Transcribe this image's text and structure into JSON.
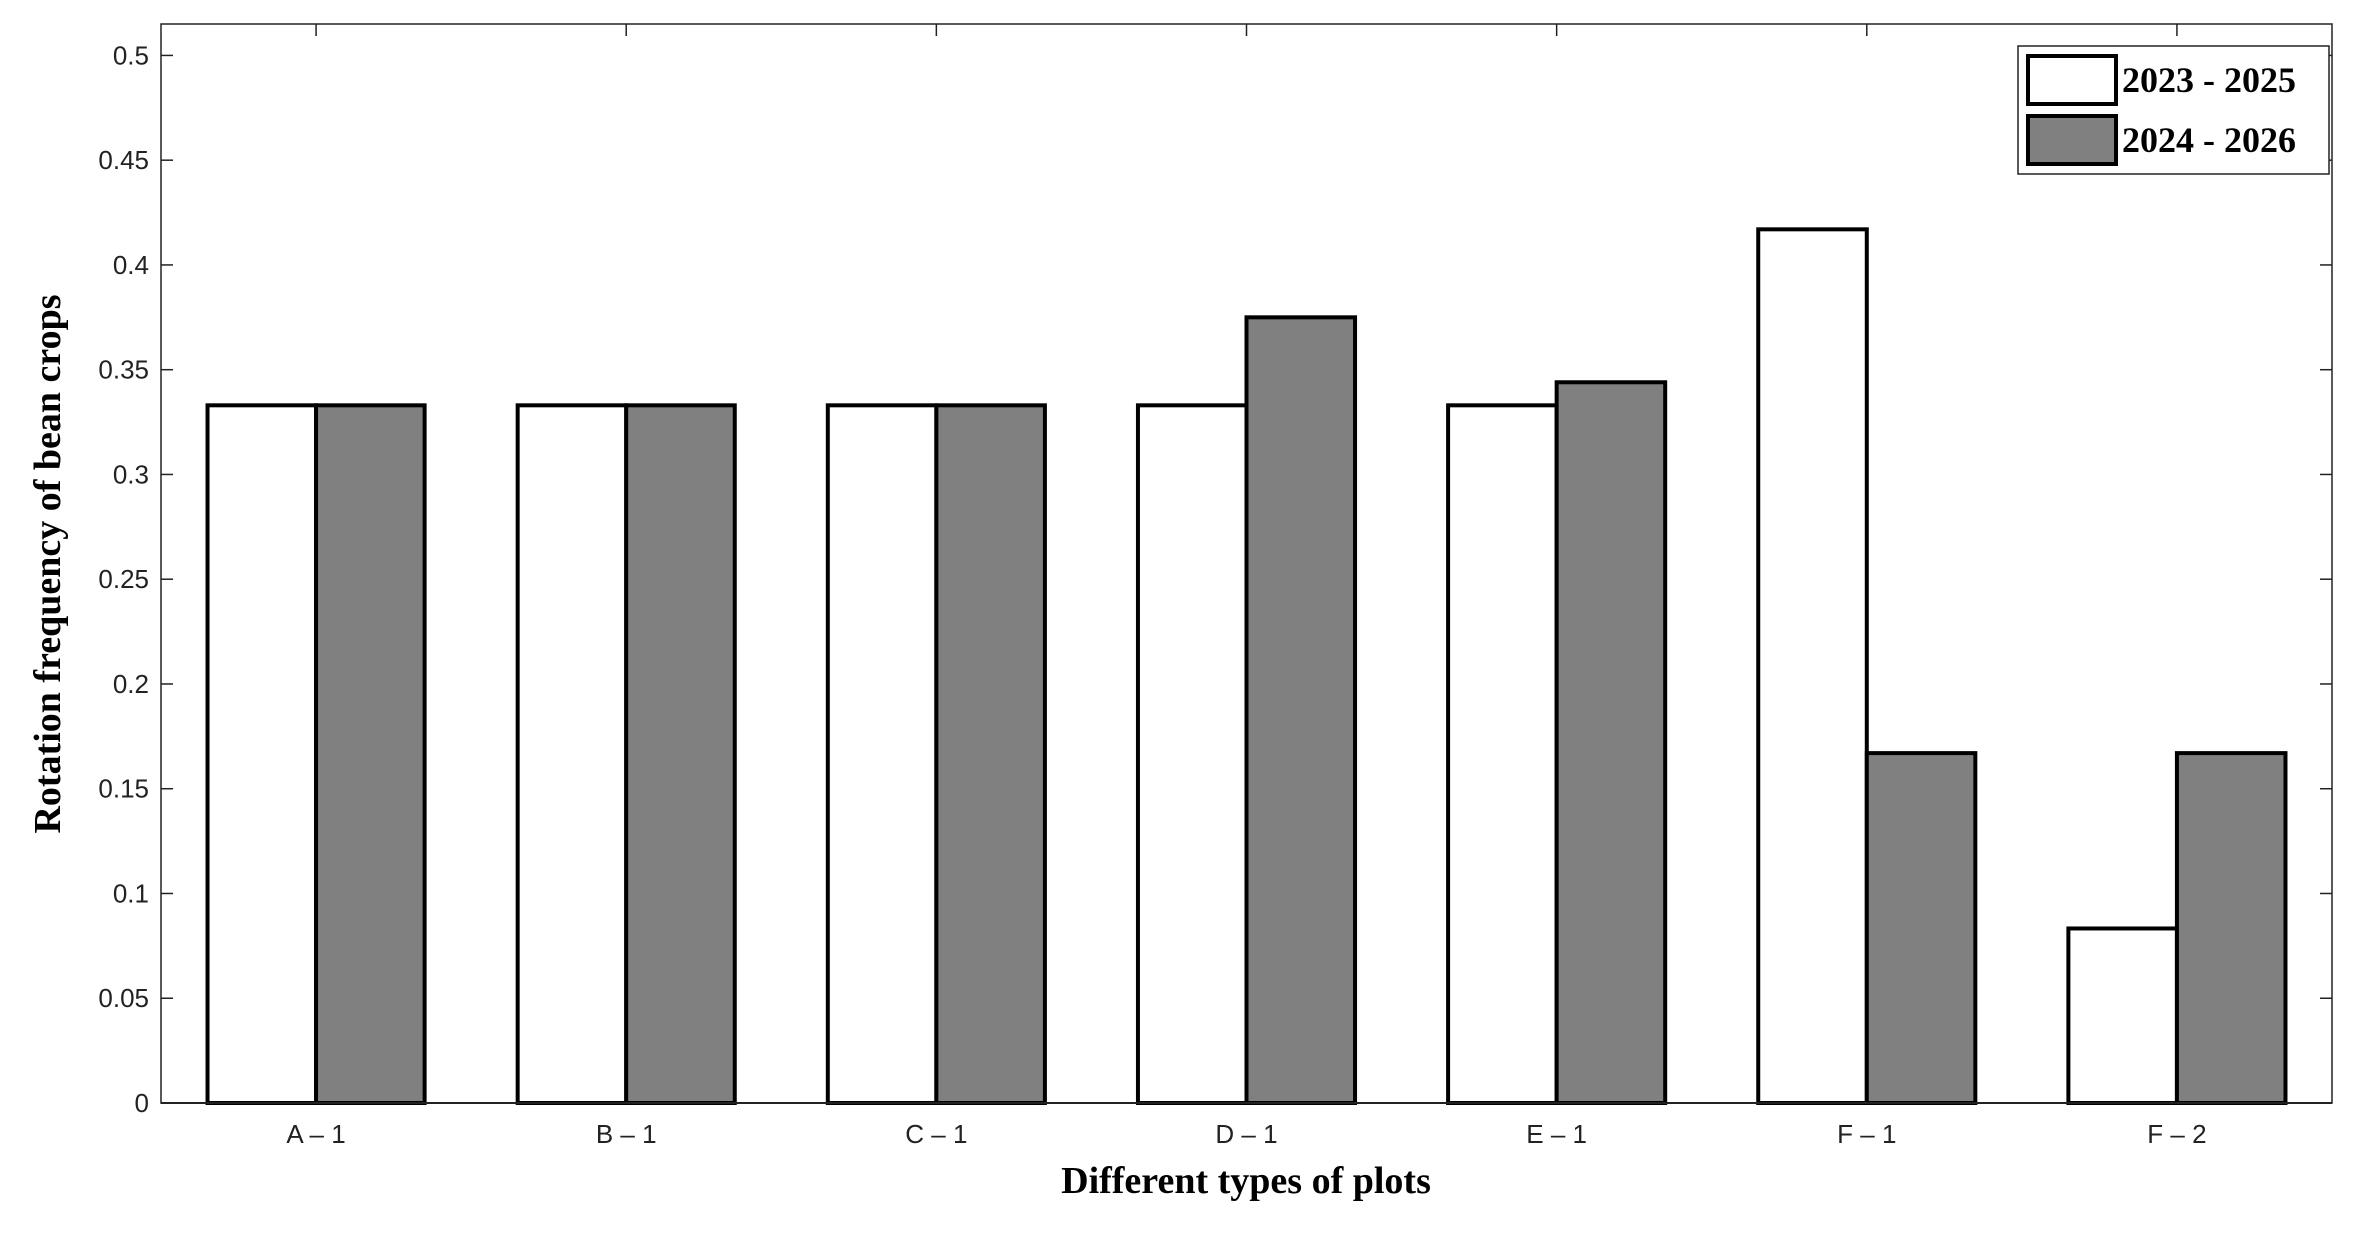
{
  "chart_data": {
    "type": "bar",
    "x_label": "Different types of plots",
    "y_label": "Rotation frequency of bean crops",
    "categories": [
      "A – 1",
      "B – 1",
      "C – 1",
      "D – 1",
      "E – 1",
      "F – 1",
      "F – 2"
    ],
    "series": [
      {
        "name": "2023 - 2025",
        "color": "#ffffff",
        "values": [
          0.333,
          0.333,
          0.333,
          0.333,
          0.333,
          0.417,
          0.0833
        ]
      },
      {
        "name": "2024 - 2026",
        "color": "#808080",
        "values": [
          0.333,
          0.333,
          0.333,
          0.375,
          0.344,
          0.167,
          0.167
        ]
      }
    ],
    "ylim": [
      0,
      0.515
    ],
    "yticks": [
      0,
      0.05,
      0.1,
      0.15,
      0.2,
      0.25,
      0.3,
      0.35,
      0.4,
      0.45,
      0.5
    ],
    "legend": "upper right"
  }
}
